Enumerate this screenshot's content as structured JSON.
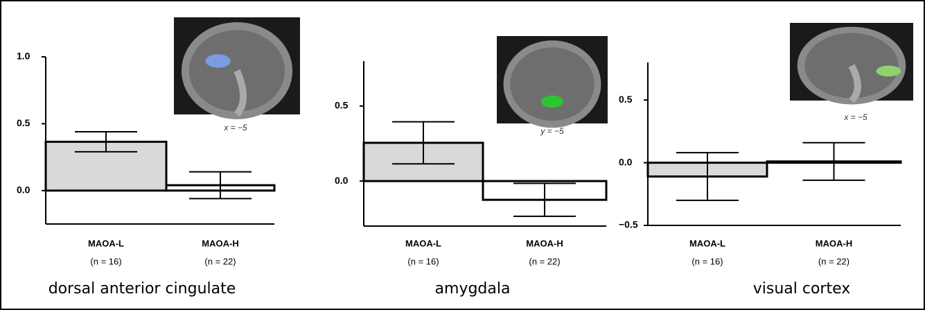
{
  "chart_data": [
    {
      "type": "bar",
      "title": "dorsal anterior cingulate",
      "image_caption": "x = −5",
      "categories": [
        "MAOA-L",
        "MAOA-H"
      ],
      "sample_sizes": [
        "(n = 16)",
        "(n = 22)"
      ],
      "values": [
        0.365,
        0.04
      ],
      "errors": [
        0.075,
        0.1
      ],
      "colors": [
        "#d9d9d9",
        "#ffffff"
      ],
      "ylim": [
        -0.25,
        1.0
      ],
      "yticks": [
        {
          "value": 0,
          "label": "0.0"
        },
        0.5,
        {
          "value": 1,
          "label": "1.0"
        }
      ]
    },
    {
      "type": "bar",
      "title": "amygdala",
      "image_caption": "y = −5",
      "categories": [
        "MAOA-L",
        "MAOA-H"
      ],
      "sample_sizes": [
        "(n = 16)",
        "(n = 22)"
      ],
      "values": [
        0.255,
        -0.125
      ],
      "errors": [
        0.14,
        0.11
      ],
      "colors": [
        "#d9d9d9",
        "#ffffff"
      ],
      "ylim": [
        -0.3,
        0.8
      ],
      "yticks": [
        {
          "value": 0,
          "label": "0.0"
        },
        0.5
      ]
    },
    {
      "type": "bar",
      "title": "visual cortex",
      "image_caption": "x = −5",
      "categories": [
        "MAOA-L",
        "MAOA-H"
      ],
      "sample_sizes": [
        "(n = 16)",
        "(n = 22)"
      ],
      "values": [
        -0.11,
        0.01
      ],
      "errors": [
        0.19,
        0.15
      ],
      "colors": [
        "#d9d9d9",
        "#ffffff"
      ],
      "ylim": [
        -0.5,
        0.8
      ],
      "yticks": [
        {
          "value": -0.5,
          "label": "−0.5"
        },
        {
          "value": 0,
          "label": "0.0"
        },
        0.5
      ]
    }
  ]
}
